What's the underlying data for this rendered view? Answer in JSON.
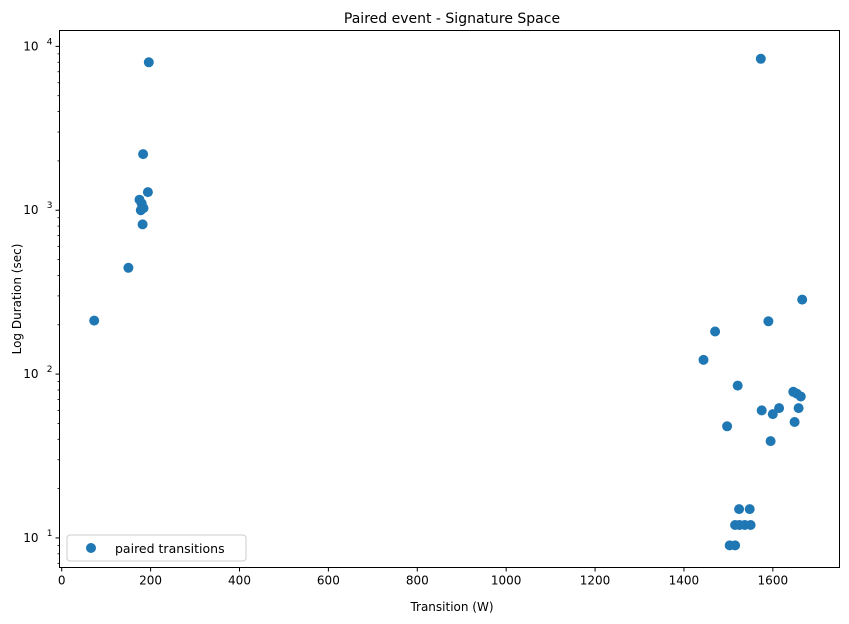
{
  "chart_data": {
    "type": "scatter",
    "title": "Paired event -  Signature Space",
    "xlabel": "Transition (W)",
    "ylabel": "Log Duration (sec)",
    "xlim": [
      -5,
      1750
    ],
    "ylim": [
      6.6,
      12500
    ],
    "yscale": "log",
    "grid": false,
    "legend_position": "lower left",
    "marker_color": "#1f77b4",
    "x_ticks": [
      {
        "value": 0,
        "label": "0"
      },
      {
        "value": 200,
        "label": "200"
      },
      {
        "value": 400,
        "label": "400"
      },
      {
        "value": 600,
        "label": "600"
      },
      {
        "value": 800,
        "label": "800"
      },
      {
        "value": 1000,
        "label": "1000"
      },
      {
        "value": 1200,
        "label": "1200"
      },
      {
        "value": 1400,
        "label": "1400"
      },
      {
        "value": 1600,
        "label": "1600"
      }
    ],
    "y_ticks": [
      {
        "value": 10,
        "base": "10",
        "exp": "1"
      },
      {
        "value": 100,
        "base": "10",
        "exp": "2"
      },
      {
        "value": 1000,
        "base": "10",
        "exp": "3"
      },
      {
        "value": 10000,
        "base": "10",
        "exp": "4"
      }
    ],
    "series": [
      {
        "name": "paired transitions",
        "points": [
          {
            "x": 73,
            "y": 212
          },
          {
            "x": 150,
            "y": 445
          },
          {
            "x": 175,
            "y": 1160
          },
          {
            "x": 178,
            "y": 1000
          },
          {
            "x": 180,
            "y": 1100
          },
          {
            "x": 182,
            "y": 820
          },
          {
            "x": 183,
            "y": 2200
          },
          {
            "x": 184,
            "y": 1030
          },
          {
            "x": 194,
            "y": 1290
          },
          {
            "x": 196,
            "y": 8000
          },
          {
            "x": 1444,
            "y": 122
          },
          {
            "x": 1470,
            "y": 182
          },
          {
            "x": 1497,
            "y": 48
          },
          {
            "x": 1503,
            "y": 9
          },
          {
            "x": 1515,
            "y": 9
          },
          {
            "x": 1515,
            "y": 12
          },
          {
            "x": 1521,
            "y": 85
          },
          {
            "x": 1524,
            "y": 15
          },
          {
            "x": 1525,
            "y": 12
          },
          {
            "x": 1537,
            "y": 12
          },
          {
            "x": 1548,
            "y": 15
          },
          {
            "x": 1550,
            "y": 12
          },
          {
            "x": 1573,
            "y": 8400
          },
          {
            "x": 1575,
            "y": 60
          },
          {
            "x": 1590,
            "y": 210
          },
          {
            "x": 1595,
            "y": 39
          },
          {
            "x": 1600,
            "y": 57
          },
          {
            "x": 1614,
            "y": 62
          },
          {
            "x": 1646,
            "y": 78
          },
          {
            "x": 1649,
            "y": 51
          },
          {
            "x": 1654,
            "y": 76
          },
          {
            "x": 1658,
            "y": 62
          },
          {
            "x": 1663,
            "y": 73
          },
          {
            "x": 1666,
            "y": 285
          }
        ]
      }
    ]
  }
}
